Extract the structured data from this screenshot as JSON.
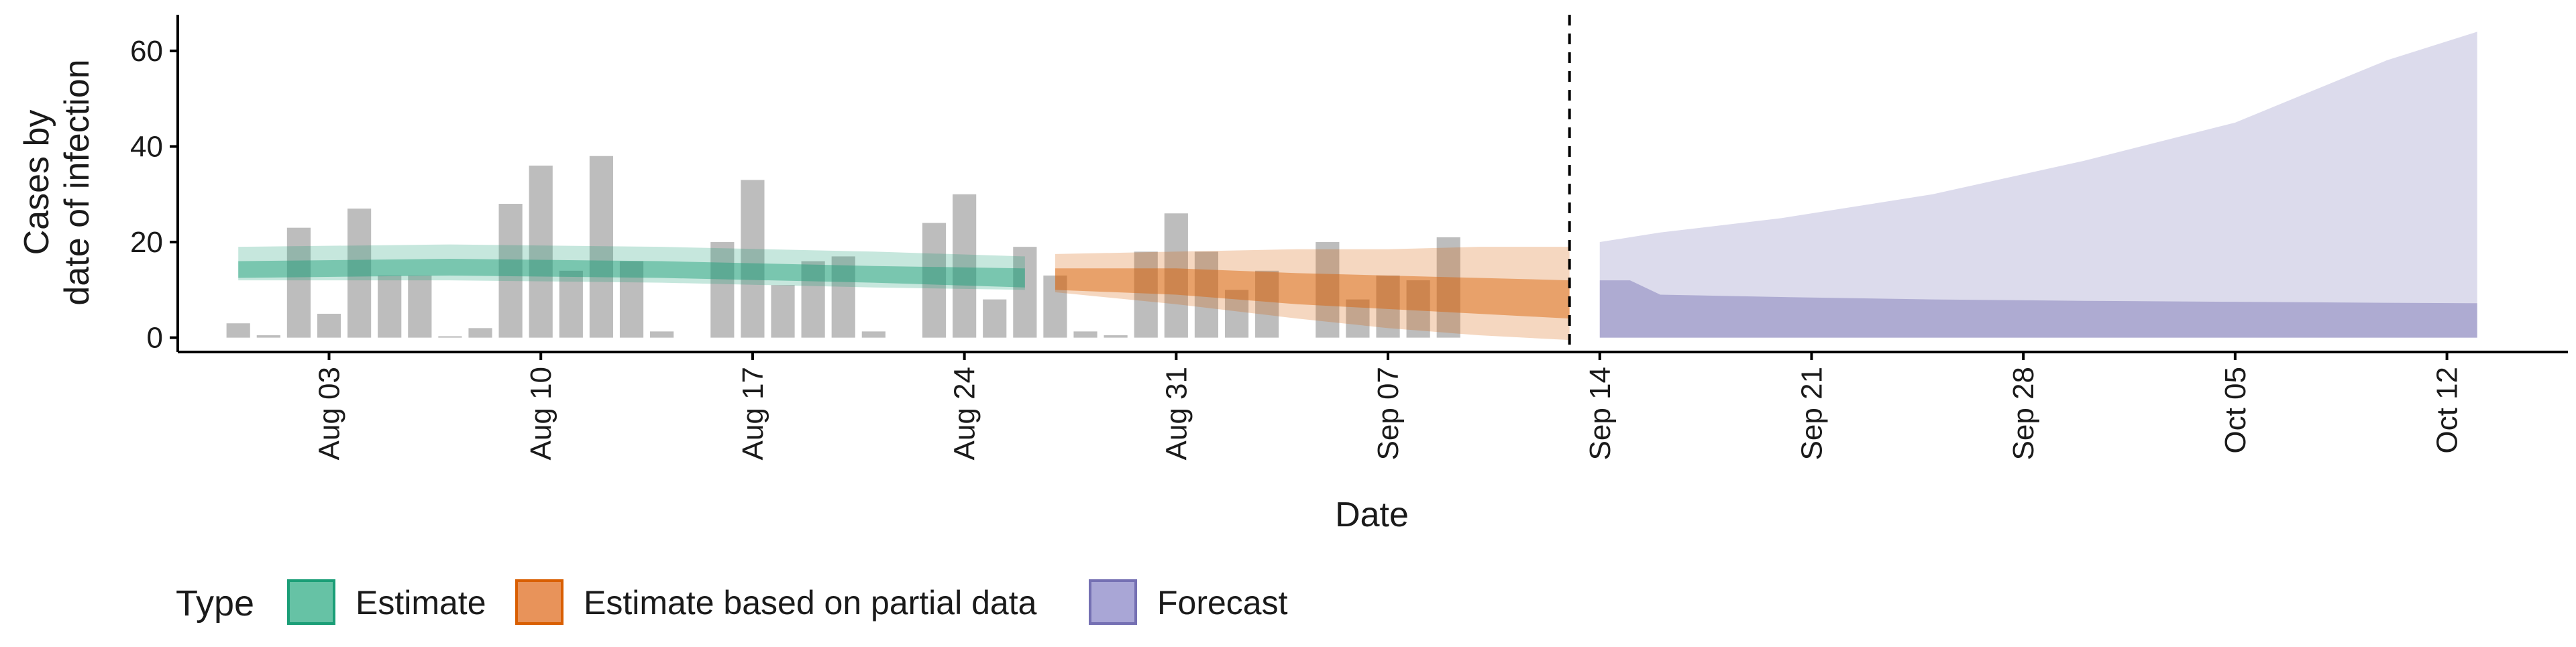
{
  "chart_data": {
    "type": "bar",
    "xlabel": "Date",
    "ylabel_lines": [
      "Cases by",
      "date of infection"
    ],
    "ylim": [
      -3,
      67
    ],
    "yticks": [
      0,
      20,
      40,
      60
    ],
    "xlim": [
      "2023-07-29",
      "2023-10-16"
    ],
    "xticks": [
      {
        "date": "2023-08-03",
        "label": "Aug 03"
      },
      {
        "date": "2023-08-10",
        "label": "Aug 10"
      },
      {
        "date": "2023-08-17",
        "label": "Aug 17"
      },
      {
        "date": "2023-08-24",
        "label": "Aug 24"
      },
      {
        "date": "2023-08-31",
        "label": "Aug 31"
      },
      {
        "date": "2023-09-07",
        "label": "Sep 07"
      },
      {
        "date": "2023-09-14",
        "label": "Sep 14"
      },
      {
        "date": "2023-09-21",
        "label": "Sep 21"
      },
      {
        "date": "2023-09-28",
        "label": "Sep 28"
      },
      {
        "date": "2023-10-05",
        "label": "Oct 05"
      },
      {
        "date": "2023-10-12",
        "label": "Oct 12"
      }
    ],
    "vline_date": "2023-09-13",
    "bars": {
      "color": "#bdbdbd",
      "values": [
        [
          "2023-07-31",
          3
        ],
        [
          "2023-08-01",
          0.5
        ],
        [
          "2023-08-02",
          23
        ],
        [
          "2023-08-03",
          5
        ],
        [
          "2023-08-04",
          27
        ],
        [
          "2023-08-05",
          13
        ],
        [
          "2023-08-06",
          13
        ],
        [
          "2023-08-07",
          0.3
        ],
        [
          "2023-08-08",
          2
        ],
        [
          "2023-08-09",
          28
        ],
        [
          "2023-08-10",
          36
        ],
        [
          "2023-08-11",
          14
        ],
        [
          "2023-08-12",
          38
        ],
        [
          "2023-08-13",
          16
        ],
        [
          "2023-08-14",
          1.3
        ],
        [
          "2023-08-15",
          0
        ],
        [
          "2023-08-16",
          20
        ],
        [
          "2023-08-17",
          33
        ],
        [
          "2023-08-18",
          11
        ],
        [
          "2023-08-19",
          16
        ],
        [
          "2023-08-20",
          17
        ],
        [
          "2023-08-21",
          1.3
        ],
        [
          "2023-08-22",
          0
        ],
        [
          "2023-08-23",
          24
        ],
        [
          "2023-08-24",
          30
        ],
        [
          "2023-08-25",
          8
        ],
        [
          "2023-08-26",
          19
        ],
        [
          "2023-08-27",
          13
        ],
        [
          "2023-08-28",
          1.3
        ],
        [
          "2023-08-29",
          0.5
        ],
        [
          "2023-08-30",
          18
        ],
        [
          "2023-08-31",
          26
        ],
        [
          "2023-09-01",
          18
        ],
        [
          "2023-09-02",
          10
        ],
        [
          "2023-09-03",
          14
        ],
        [
          "2023-09-04",
          0
        ],
        [
          "2023-09-05",
          20
        ],
        [
          "2023-09-06",
          8
        ],
        [
          "2023-09-07",
          13
        ],
        [
          "2023-09-08",
          12
        ],
        [
          "2023-09-09",
          21
        ]
      ]
    },
    "bands": [
      {
        "name": "Estimate",
        "color": "#1b9e77",
        "dates": [
          "2023-07-31",
          "2023-08-07",
          "2023-08-14",
          "2023-08-21",
          "2023-08-26"
        ],
        "outer_lo": [
          12,
          12,
          11.5,
          10.5,
          10
        ],
        "outer_hi": [
          19,
          19.5,
          19,
          18,
          17
        ],
        "inner_lo": [
          12.5,
          13,
          12.5,
          11.5,
          10.5
        ],
        "inner_hi": [
          16,
          16.5,
          16,
          15,
          14.5
        ]
      },
      {
        "name": "Estimate based on partial data",
        "color": "#d95f02",
        "dates": [
          "2023-08-27",
          "2023-08-31",
          "2023-09-04",
          "2023-09-07",
          "2023-09-10",
          "2023-09-13"
        ],
        "outer_lo": [
          9.5,
          7,
          4,
          2,
          0.5,
          -0.5
        ],
        "outer_hi": [
          17.5,
          18,
          18.5,
          18.5,
          19,
          19
        ],
        "inner_lo": [
          10,
          9,
          7,
          6,
          5,
          4
        ],
        "inner_hi": [
          14.5,
          14.5,
          13.5,
          13,
          12.5,
          12
        ]
      },
      {
        "name": "Forecast",
        "color": "#7570b3",
        "dates": [
          "2023-09-14",
          "2023-09-15",
          "2023-09-16",
          "2023-09-20",
          "2023-09-25",
          "2023-09-30",
          "2023-10-05",
          "2023-10-10",
          "2023-10-13"
        ],
        "outer_lo": [
          0,
          0,
          0,
          0,
          0,
          0,
          0,
          0,
          0
        ],
        "outer_hi": [
          20,
          21,
          22,
          25,
          30,
          37,
          45,
          58,
          64
        ],
        "inner_lo": [
          0,
          0,
          0,
          0,
          0,
          0,
          0,
          0,
          0
        ],
        "inner_hi": [
          12,
          12,
          9,
          8.5,
          8,
          7.7,
          7.5,
          7.3,
          7.2
        ]
      }
    ],
    "legend": {
      "title": "Type",
      "position": "bottom-left",
      "items": [
        {
          "label": "Estimate",
          "fill": "#66c2a5",
          "stroke": "#1b9e77"
        },
        {
          "label": "Estimate based on partial data",
          "fill": "#e8935a",
          "stroke": "#d95f02"
        },
        {
          "label": "Forecast",
          "fill": "#a9a6d6",
          "stroke": "#7570b3"
        }
      ]
    },
    "grid": false
  }
}
